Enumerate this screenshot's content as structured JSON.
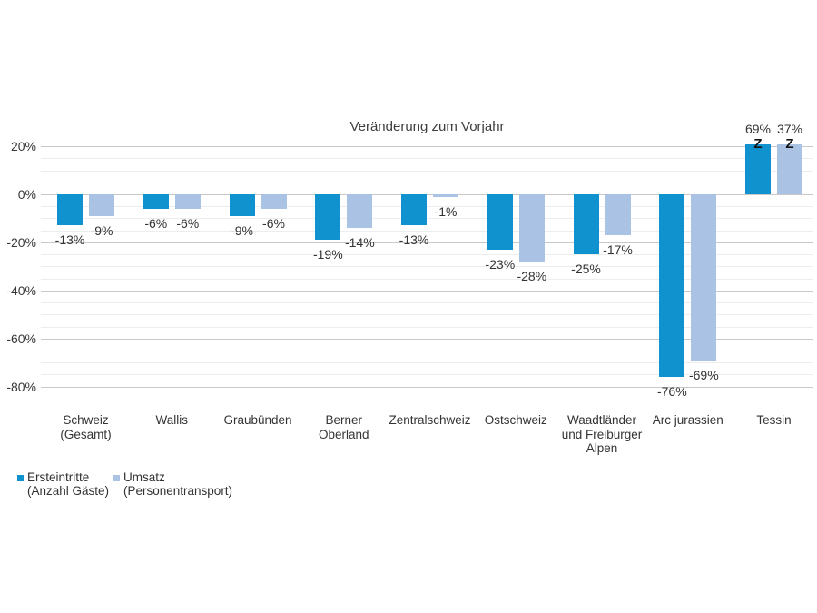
{
  "chart_data": {
    "type": "bar",
    "title": "Veränderung zum Vorjahr",
    "categories": [
      "Schweiz (Gesamt)",
      "Wallis",
      "Graubünden",
      "Berner Oberland",
      "Zentralschweiz",
      "Ostschweiz",
      "Waadtländer und Freiburger Alpen",
      "Arc jurassien",
      "Tessin"
    ],
    "category_lines": [
      [
        "Schweiz",
        "(Gesamt)"
      ],
      [
        "Wallis"
      ],
      [
        "Graubünden"
      ],
      [
        "Berner",
        "Oberland"
      ],
      [
        "Zentralschweiz"
      ],
      [
        "Ostschweiz"
      ],
      [
        "Waadtländer",
        "und Freiburger",
        "Alpen"
      ],
      [
        "Arc jurassien"
      ],
      [
        "Tessin"
      ]
    ],
    "series": [
      {
        "name": "Ersteintritte (Anzahl Gäste)",
        "legend_lines": [
          "Ersteintritte",
          "(Anzahl Gäste)"
        ],
        "color": "#1092ce",
        "values": [
          -13,
          -6,
          -9,
          -19,
          -13,
          -23,
          -25,
          -76,
          69
        ],
        "labels": [
          "-13%",
          "-6%",
          "-9%",
          "-19%",
          "-13%",
          "-23%",
          "-25%",
          "-76%",
          "69%"
        ]
      },
      {
        "name": "Umsatz (Personentransport)",
        "legend_lines": [
          "Umsatz",
          "(Personentransport)"
        ],
        "color": "#aac2e4",
        "values": [
          -9,
          -6,
          -6,
          -14,
          -1,
          -28,
          -17,
          -69,
          37
        ],
        "labels": [
          "-9%",
          "-6%",
          "-6%",
          "-14%",
          "-1%",
          "-28%",
          "-17%",
          "-69%",
          "37%"
        ]
      }
    ],
    "y_axis": {
      "ticks": [
        "20%",
        "0%",
        "-20%",
        "-40%",
        "-60%",
        "-80%"
      ],
      "tick_values": [
        20,
        0,
        -20,
        -40,
        -60,
        -80
      ],
      "minor_step": 5,
      "max_display": 20,
      "min_display": -80
    },
    "axis_break_marker": "Z",
    "clipped_at_top_category_indexes": [
      8
    ],
    "grid": true,
    "legend_position": "bottom-left",
    "colors": {
      "series1": "#1092ce",
      "series2": "#aac2e4",
      "gridline_major": "#c8c8c8",
      "gridline_minor": "#ededed",
      "text": "#333333"
    }
  }
}
